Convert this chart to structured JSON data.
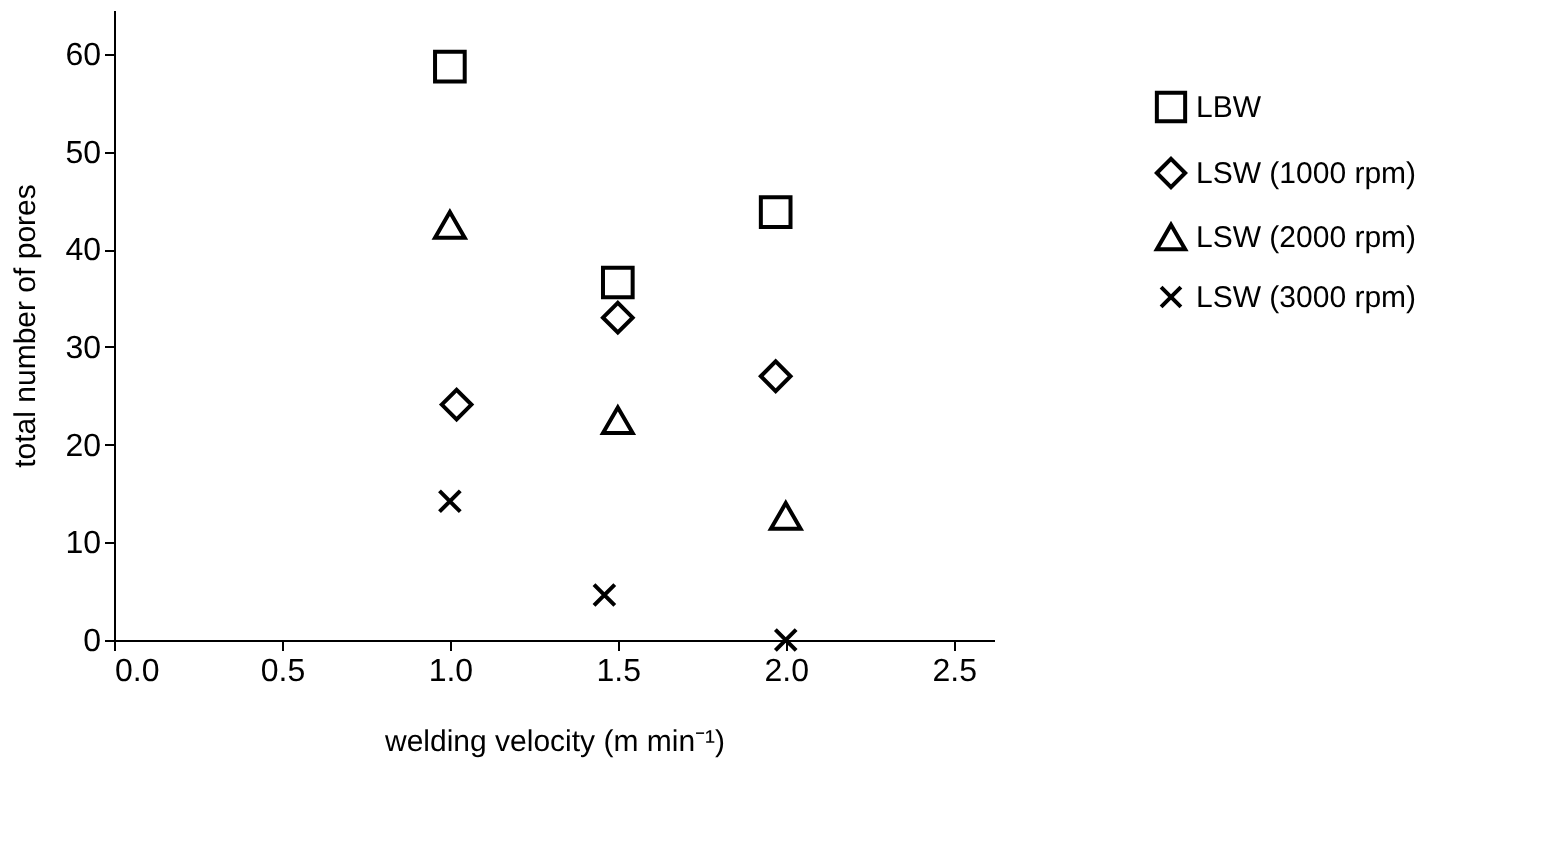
{
  "chart_data": {
    "type": "scatter",
    "xlabel": "welding velocity (m min⁻¹)",
    "ylabel": "total number of pores",
    "xlim": [
      0,
      2.62
    ],
    "xticks": [
      {
        "value": 0,
        "label": "0.0"
      },
      {
        "value": 0.5,
        "label": "0.5"
      },
      {
        "value": 1,
        "label": "1.0"
      },
      {
        "value": 1.5,
        "label": "1.5"
      },
      {
        "value": 2,
        "label": "2.0"
      },
      {
        "value": 2.5,
        "label": "2.5"
      }
    ],
    "ylim": [
      0,
      64.5
    ],
    "yticks": [
      0,
      10,
      20,
      30,
      40,
      50,
      60
    ],
    "grid": false,
    "legend": "right",
    "series": [
      {
        "name": "LBW",
        "color": "#000000",
        "marker": "square",
        "x": [
          1.0,
          1.5,
          1.97
        ],
        "values": [
          58.7,
          36.6,
          43.8
        ]
      },
      {
        "name": "LSW (1000 rpm)",
        "color": "#000000",
        "marker": "diamond",
        "x": [
          1.02,
          1.5,
          1.97
        ],
        "values": [
          24.1,
          33.0,
          27.0
        ]
      },
      {
        "name": "LSW (2000 rpm)",
        "color": "#000000",
        "marker": "triangle",
        "x": [
          1.0,
          1.5,
          2.0
        ],
        "values": [
          42.5,
          22.5,
          12.7
        ]
      },
      {
        "name": "LSW (3000 rpm)",
        "color": "#000000",
        "marker": "cross",
        "x": [
          1.0,
          1.46,
          2.0
        ],
        "values": [
          14.2,
          4.6,
          0.0
        ]
      }
    ]
  }
}
